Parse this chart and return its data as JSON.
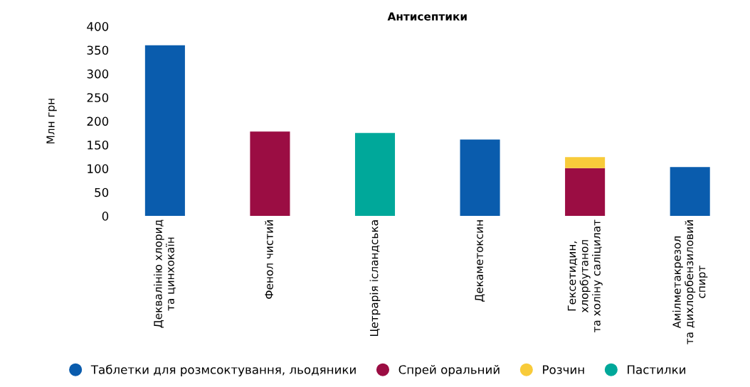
{
  "chart_data": {
    "type": "bar",
    "title": "Антисептики",
    "ylabel": "Млн грн",
    "categories": [
      "Деквалінію хлорид\nта цинхокаїн",
      "Фенол чистий",
      "Цетрарія ісландська",
      "Декаметоксин",
      "Гексетидин,\nхлорбутанол\nта холіну саліцилат",
      "Амілметакрезол\nта дихлорбензиловий\nспирт"
    ],
    "stacked": true,
    "series": [
      {
        "name": "Таблетки для розмсоктування, льодяники",
        "color": "#0a5cad",
        "values": [
          360,
          null,
          null,
          161,
          null,
          103
        ]
      },
      {
        "name": "Спрей оральний",
        "color": "#9b0d43",
        "values": [
          null,
          178,
          null,
          null,
          101,
          null
        ]
      },
      {
        "name": "Розчин",
        "color": "#f8cb3a",
        "values": [
          null,
          null,
          null,
          null,
          23,
          null
        ]
      },
      {
        "name": "Пастилки",
        "color": "#00a89a",
        "values": [
          null,
          null,
          175,
          null,
          null,
          null
        ]
      }
    ],
    "ylim": [
      0,
      400
    ],
    "yticks": [
      0,
      50,
      100,
      150,
      200,
      250,
      300,
      350,
      400
    ],
    "grid": false,
    "legend": "bottom",
    "marker": "circle"
  }
}
